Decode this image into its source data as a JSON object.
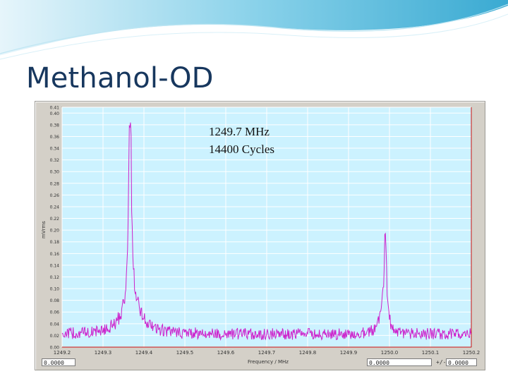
{
  "slide": {
    "title": "Methanol-OD",
    "accent_color": "#17375e",
    "banner_color": "#4bb5d8"
  },
  "instrument": {
    "annotation_frequency": "1249.7 MHz",
    "annotation_cycles": "14400 Cycles",
    "x_axis_title": "Frequency / MHz",
    "y_axis_title": "mVrms",
    "readout_left": "0.0000",
    "readout_right": "0.0000",
    "cursor_label": "+/-",
    "readout_far_right": "0.0000",
    "plot_background": "#ccf2ff",
    "trace_color": "#cc22cc",
    "cursor_color": "#cc1111"
  },
  "chart_data": {
    "type": "line",
    "title": "",
    "xlabel": "Frequency / MHz",
    "ylabel": "mVrms",
    "xlim": [
      1249.2,
      1250.2
    ],
    "ylim": [
      0.0,
      0.41
    ],
    "x_ticks": [
      "1249.2",
      "1249.3",
      "1249.4",
      "1249.5",
      "1249.6",
      "1249.7",
      "1249.8",
      "1249.9",
      "1250.0",
      "1250.1",
      "1250.2"
    ],
    "y_ticks": [
      "0.00",
      "0.02",
      "0.04",
      "0.06",
      "0.08",
      "0.10",
      "0.12",
      "0.14",
      "0.16",
      "0.18",
      "0.20",
      "0.22",
      "0.24",
      "0.26",
      "0.28",
      "0.30",
      "0.32",
      "0.34",
      "0.36",
      "0.38",
      "0.40",
      "0.41"
    ],
    "grid": true,
    "series": [
      {
        "noise_floor": 0.012,
        "noise_amplitude": 0.02,
        "peaks": [
          {
            "center": 1249.366,
            "height": 0.4,
            "width": 0.004
          },
          {
            "center": 1249.37,
            "height": 0.06,
            "width": 0.025
          },
          {
            "center": 1249.99,
            "height": 0.17,
            "width": 0.003
          },
          {
            "center": 1249.985,
            "height": 0.05,
            "width": 0.01
          }
        ]
      }
    ]
  }
}
